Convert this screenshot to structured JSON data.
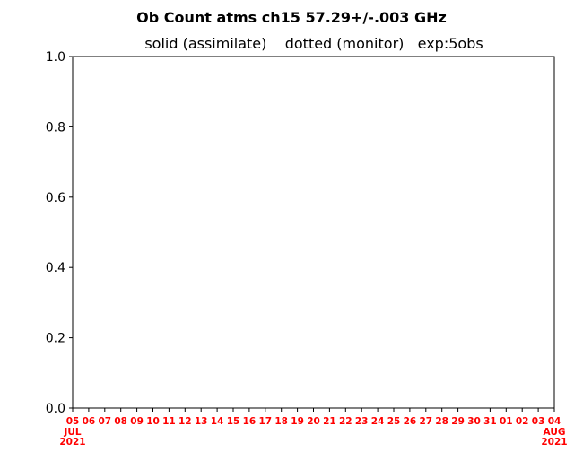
{
  "chart_data": {
    "type": "line",
    "title": "Ob Count atms ch15 57.29+/-.003 GHz",
    "subtitle": "solid (assimilate)    dotted (monitor)   exp:5obs",
    "xlabel": "",
    "ylabel": "",
    "ylim": [
      0.0,
      1.0
    ],
    "yticks": [
      "0.0",
      "0.2",
      "0.4",
      "0.6",
      "0.8",
      "1.0"
    ],
    "xlim": [
      "2021-07-05",
      "2021-08-04"
    ],
    "xtick_labels": [
      "05",
      "06",
      "07",
      "08",
      "09",
      "10",
      "11",
      "12",
      "13",
      "14",
      "15",
      "16",
      "17",
      "18",
      "19",
      "20",
      "21",
      "22",
      "23",
      "24",
      "25",
      "26",
      "27",
      "28",
      "29",
      "30",
      "31",
      "01",
      "02",
      "03",
      "04"
    ],
    "x_month_labels": [
      {
        "label": "JUL",
        "year": "2021",
        "tick": "05"
      },
      {
        "label": "AUG",
        "year": "2021",
        "tick": "04"
      }
    ],
    "xtick_color": "#ff0000",
    "series": [],
    "grid": false
  }
}
